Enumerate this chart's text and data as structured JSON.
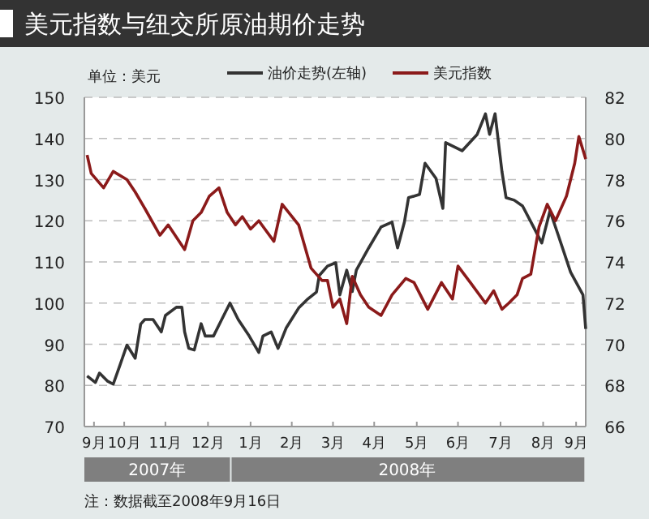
{
  "chart_data": {
    "type": "line",
    "title": "美元指数与纽交所原油期价走势",
    "ylabel": "单位：美元",
    "xlim": [
      "2007-09-17",
      "2008-09-16"
    ],
    "xticks": [
      {
        "value": "2007-09-24",
        "label": "9月"
      },
      {
        "value": "2007-10-16",
        "label": "10月"
      },
      {
        "value": "2007-11-15",
        "label": "11月"
      },
      {
        "value": "2007-12-16",
        "label": "12月"
      },
      {
        "value": "2008-01-16",
        "label": "1月"
      },
      {
        "value": "2008-02-15",
        "label": "2月"
      },
      {
        "value": "2008-03-16",
        "label": "3月"
      },
      {
        "value": "2008-04-15",
        "label": "4月"
      },
      {
        "value": "2008-05-16",
        "label": "5月"
      },
      {
        "value": "2008-06-15",
        "label": "6月"
      },
      {
        "value": "2008-07-16",
        "label": "7月"
      },
      {
        "value": "2008-08-16",
        "label": "8月"
      },
      {
        "value": "2008-09-09",
        "label": "9月"
      }
    ],
    "ylim": [
      70,
      150
    ],
    "yticks": [
      70,
      80,
      90,
      100,
      110,
      120,
      130,
      140,
      150
    ],
    "y2lim": [
      66,
      82
    ],
    "y2ticks": [
      66,
      68,
      70,
      72,
      74,
      76,
      78,
      80,
      82
    ],
    "grid": "y",
    "legend": "top",
    "line_style": "solid",
    "marker": "none",
    "series": [
      {
        "name": "油价走势(左轴)",
        "color": "#333333",
        "x": [
          "2007-09-19",
          "2007-09-25",
          "2007-09-28",
          "2007-10-04",
          "2007-10-08",
          "2007-10-13",
          "2007-10-18",
          "2007-10-24",
          "2007-10-28",
          "2007-10-31",
          "2007-11-06",
          "2007-11-12",
          "2007-11-15",
          "2007-11-23",
          "2007-11-27",
          "2007-11-29",
          "2007-12-02",
          "2007-12-06",
          "2007-12-11",
          "2007-12-14",
          "2007-12-20",
          "2007-12-26",
          "2008-01-01",
          "2008-01-07",
          "2008-01-15",
          "2008-01-22",
          "2008-01-25",
          "2008-01-31",
          "2008-02-05",
          "2008-02-11",
          "2008-02-20",
          "2008-02-26",
          "2008-03-04",
          "2008-03-06",
          "2008-03-12",
          "2008-03-18",
          "2008-03-21",
          "2008-03-26",
          "2008-03-30",
          "2008-04-02",
          "2008-04-11",
          "2008-04-20",
          "2008-04-28",
          "2008-05-02",
          "2008-05-07",
          "2008-05-10",
          "2008-05-18",
          "2008-05-22",
          "2008-05-30",
          "2008-06-04",
          "2008-06-06",
          "2008-06-18",
          "2008-06-29",
          "2008-07-05",
          "2008-07-08",
          "2008-07-12",
          "2008-07-17",
          "2008-07-20",
          "2008-07-26",
          "2008-08-01",
          "2008-08-09",
          "2008-08-15",
          "2008-08-21",
          "2008-08-27",
          "2008-09-05",
          "2008-09-14",
          "2008-09-16"
        ],
        "values": [
          82.3,
          80.7,
          83,
          81,
          80.3,
          85,
          89.8,
          86.6,
          94.9,
          96,
          96,
          93,
          97,
          99,
          99,
          93,
          89,
          88.6,
          95,
          92,
          92,
          96,
          100,
          96,
          92,
          88,
          92,
          93,
          89,
          94,
          98.8,
          100.8,
          102.7,
          106.7,
          109,
          109.8,
          102,
          108,
          102.8,
          108,
          113.4,
          118.5,
          119.7,
          113.4,
          119.7,
          125.6,
          126.4,
          134,
          130.3,
          123,
          139,
          137,
          141,
          146,
          141,
          146,
          132,
          125.6,
          125,
          123.6,
          118.5,
          114.6,
          122.4,
          116.5,
          107.5,
          102,
          93.7
        ]
      },
      {
        "name": "美元指数",
        "color": "#8b1a1a",
        "axis": "y2",
        "x": [
          "2007-09-19",
          "2007-09-22",
          "2007-10-01",
          "2007-10-08",
          "2007-10-18",
          "2007-10-24",
          "2007-10-31",
          "2007-11-11",
          "2007-11-17",
          "2007-11-29",
          "2007-12-05",
          "2007-12-11",
          "2007-12-17",
          "2007-12-24",
          "2007-12-30",
          "2008-01-05",
          "2008-01-10",
          "2008-01-16",
          "2008-01-22",
          "2008-02-02",
          "2008-02-08",
          "2008-02-20",
          "2008-02-29",
          "2008-03-08",
          "2008-03-12",
          "2008-03-16",
          "2008-03-21",
          "2008-03-26",
          "2008-03-30",
          "2008-04-05",
          "2008-04-11",
          "2008-04-20",
          "2008-04-28",
          "2008-05-08",
          "2008-05-14",
          "2008-05-24",
          "2008-06-03",
          "2008-06-11",
          "2008-06-15",
          "2008-06-24",
          "2008-07-05",
          "2008-07-11",
          "2008-07-17",
          "2008-07-22",
          "2008-07-28",
          "2008-08-01",
          "2008-08-07",
          "2008-08-13",
          "2008-08-19",
          "2008-08-25",
          "2008-09-02",
          "2008-09-08",
          "2008-09-11",
          "2008-09-16"
        ],
        "values": [
          79.2,
          78.3,
          77.6,
          78.4,
          78,
          77.4,
          76.6,
          75.3,
          75.8,
          74.6,
          76,
          76.4,
          77.2,
          77.6,
          76.4,
          75.8,
          76.2,
          75.6,
          76,
          75,
          76.8,
          75.8,
          73.7,
          73.1,
          73.1,
          71.8,
          72.2,
          71,
          73.3,
          72.4,
          71.8,
          71.4,
          72.4,
          73.2,
          73,
          71.7,
          73,
          72.2,
          73.8,
          73,
          72,
          72.6,
          71.7,
          72,
          72.4,
          73.2,
          73.4,
          75.7,
          76.8,
          76,
          77.2,
          78.8,
          80.1,
          79
        ]
      }
    ],
    "x2lim": [
      "2007-09-17",
      "2008-09-16"
    ],
    "x2ticks": [
      {
        "value": "2007-11-09",
        "label": "2007年"
      },
      {
        "value": "2008-05-09",
        "label": "2008年"
      }
    ],
    "annotations": [
      "注：数据截至2008年9月16日"
    ]
  }
}
